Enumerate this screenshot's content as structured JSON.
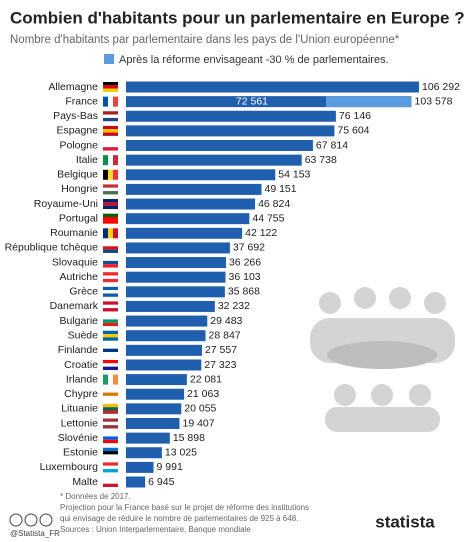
{
  "chart_data": {
    "type": "bar",
    "orientation": "horizontal",
    "title": "Combien d'habitants pour un parlementaire en Europe ?",
    "subtitle": "Nombre d'habitants par parlementaire dans les pays de l'Union européenne*",
    "categories": [
      "Allemagne",
      "France",
      "Pays-Bas",
      "Espagne",
      "Pologne",
      "Italie",
      "Belgique",
      "Hongrie",
      "Royaume-Uni",
      "Portugal",
      "Roumanie",
      "République tchèque",
      "Slovaquie",
      "Autriche",
      "Grèce",
      "Danemark",
      "Bulgarie",
      "Suède",
      "Finlande",
      "Croatie",
      "Irlande",
      "Chypre",
      "Lituanie",
      "Lettonie",
      "Slovénie",
      "Estonie",
      "Luxembourg",
      "Malte"
    ],
    "series": [
      {
        "color": "#1f5fae",
        "values": [
          106292,
          103578,
          76146,
          75604,
          67814,
          63738,
          54153,
          49151,
          46824,
          44755,
          42122,
          37692,
          36266,
          36103,
          35868,
          32232,
          29483,
          28847,
          27557,
          27323,
          22081,
          21063,
          20055,
          19407,
          15898,
          13025,
          9991,
          6945
        ],
        "value_labels": [
          "106 292",
          "103 578",
          "76 146",
          "75 604",
          "67 814",
          "63 738",
          "54 153",
          "49 151",
          "46 824",
          "44 755",
          "42 122",
          "37 692",
          "36 266",
          "36 103",
          "35 868",
          "32 232",
          "29 483",
          "28 847",
          "27 557",
          "27 323",
          "22 081",
          "21 063",
          "20 055",
          "19 407",
          "15 898",
          "13 025",
          "9 991",
          "6 945"
        ]
      },
      {
        "name": "Après la réforme envisageant -30 % de parlementaires.",
        "color": "#5b9bdf",
        "values": [
          null,
          72561,
          null,
          null,
          null,
          null,
          null,
          null,
          null,
          null,
          null,
          null,
          null,
          null,
          null,
          null,
          null,
          null,
          null,
          null,
          null,
          null,
          null,
          null,
          null,
          null,
          null,
          null
        ],
        "value_labels": [
          null,
          "72 561",
          null,
          null,
          null,
          null,
          null,
          null,
          null,
          null,
          null,
          null,
          null,
          null,
          null,
          null,
          null,
          null,
          null,
          null,
          null,
          null,
          null,
          null,
          null,
          null,
          null,
          null
        ]
      }
    ],
    "notes": [
      "* Données de 2017.",
      "Projection pour la France basé sur le projet de réforme des institutions",
      "qui envisage de réduire le nombre de parlementaires de 925 à 648.",
      "Sources : Union Interparlementaire, Banque mondiale"
    ],
    "handle": "@Statista_FR",
    "brand": "statista"
  }
}
